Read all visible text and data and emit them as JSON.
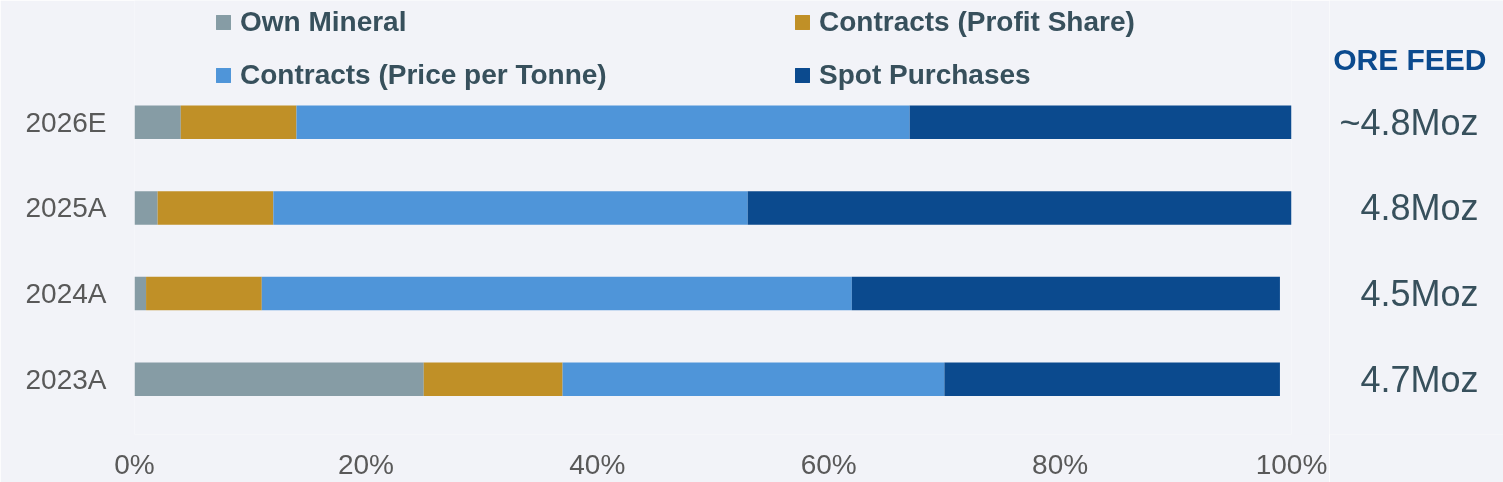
{
  "chart_data": {
    "type": "bar",
    "orientation": "horizontal",
    "stacked": true,
    "categories": [
      "2026E",
      "2025A",
      "2024A",
      "2023A"
    ],
    "series": [
      {
        "name": "Own Mineral",
        "color": "#869ca5",
        "values": [
          4,
          2,
          1,
          25
        ]
      },
      {
        "name": "Contracts (Profit Share)",
        "color": "#c09027",
        "values": [
          10,
          10,
          10,
          12
        ]
      },
      {
        "name": "Contracts (Price per Tonne)",
        "color": "#4f95d9",
        "values": [
          53,
          41,
          51,
          33
        ]
      },
      {
        "name": "Spot Purchases",
        "color": "#0b4a8e",
        "values": [
          33,
          47,
          37,
          29
        ]
      }
    ],
    "xlim": [
      0,
      100
    ],
    "xticks": [
      {
        "value": 0,
        "label": "0%"
      },
      {
        "value": 20,
        "label": "20%"
      },
      {
        "value": 40,
        "label": "40%"
      },
      {
        "value": 60,
        "label": "60%"
      },
      {
        "value": 80,
        "label": "80%"
      },
      {
        "value": 100,
        "label": "100%"
      }
    ],
    "legend": "top",
    "annotations": [
      "ORE FEED",
      "~4.8Moz",
      "4.8Moz",
      "4.5Moz",
      "4.7Moz"
    ]
  }
}
